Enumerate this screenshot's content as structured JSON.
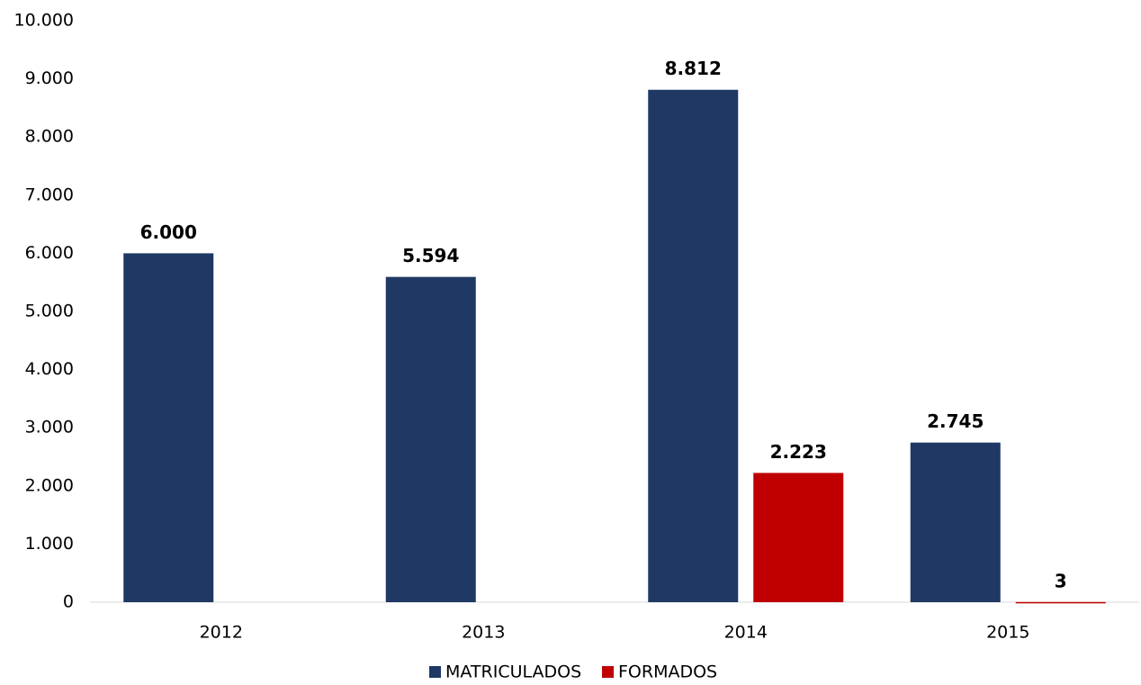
{
  "chart_data": {
    "type": "bar",
    "categories": [
      "2012",
      "2013",
      "2014",
      "2015"
    ],
    "series": [
      {
        "name": "MATRICULADOS",
        "color": "#1f3864",
        "values": [
          6000,
          5594,
          8812,
          2745
        ],
        "value_labels": [
          "6.000",
          "5.594",
          "8.812",
          "2.745"
        ]
      },
      {
        "name": "FORMADOS",
        "color": "#c00000",
        "values": [
          null,
          null,
          2223,
          3
        ],
        "value_labels": [
          null,
          null,
          "2.223",
          "3"
        ]
      }
    ],
    "ylim": [
      0,
      10000
    ],
    "yticks": [
      0,
      {
        "value": 1000,
        "label": "1.000"
      },
      {
        "value": 2000,
        "label": "2.000"
      },
      {
        "value": 3000,
        "label": "3.000"
      },
      {
        "value": 4000,
        "label": "4.000"
      },
      {
        "value": 5000,
        "label": "5.000"
      },
      {
        "value": 6000,
        "label": "6.000"
      },
      {
        "value": 7000,
        "label": "7.000"
      },
      {
        "value": 8000,
        "label": "8.000"
      },
      {
        "value": 9000,
        "label": "9.000"
      },
      {
        "value": 10000,
        "label": "10.000"
      }
    ],
    "grid": false,
    "legend": "bottom"
  }
}
